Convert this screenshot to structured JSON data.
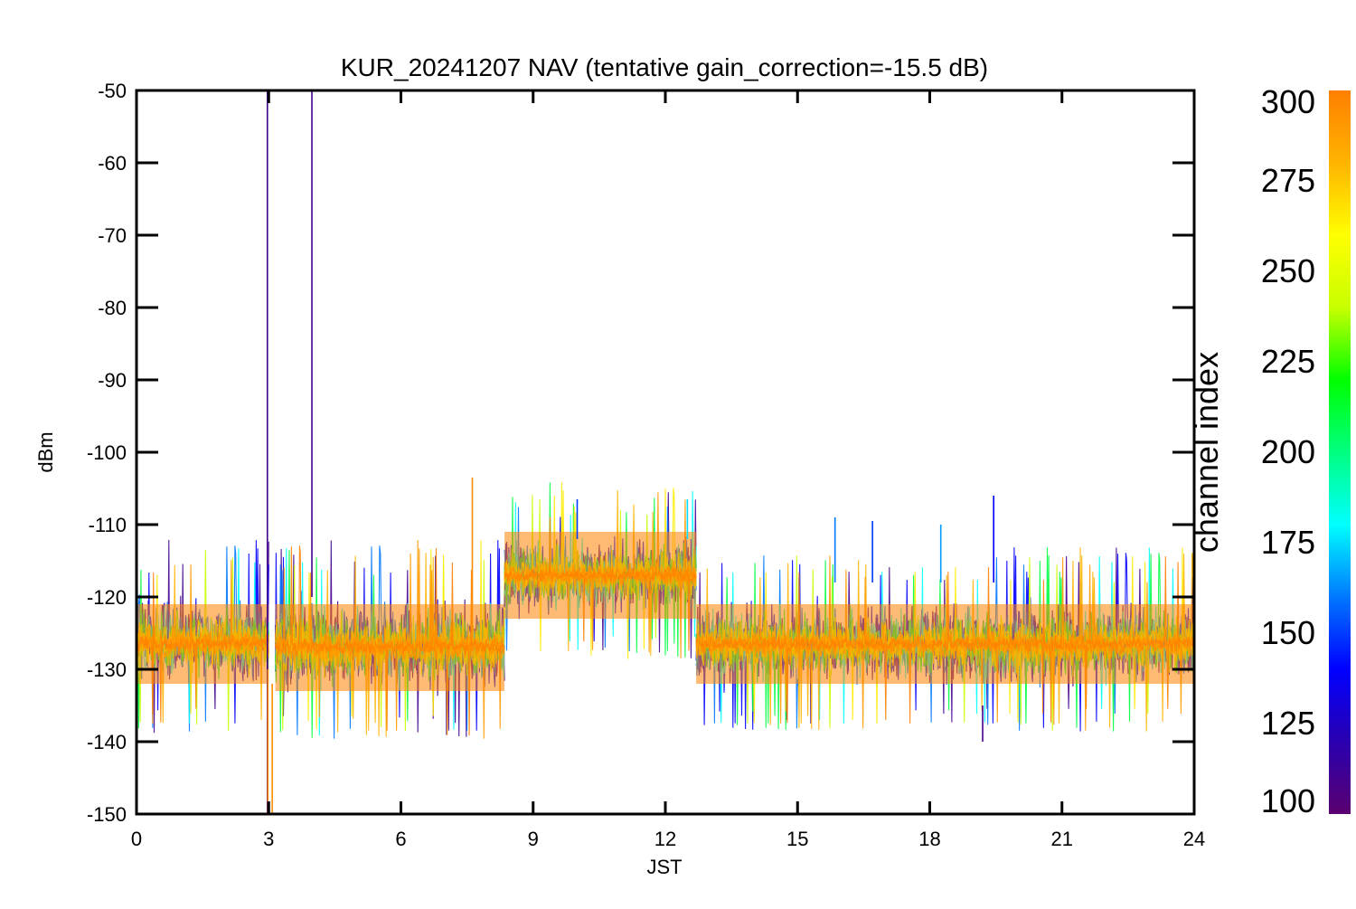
{
  "chart_data": {
    "type": "line",
    "title": "KUR_20241207 NAV (tentative gain_correction=-15.5 dB)",
    "xlabel": "JST",
    "ylabel": "dBm",
    "xlim": [
      0,
      24
    ],
    "ylim": [
      -150,
      -50
    ],
    "x_ticks": [
      0,
      3,
      6,
      9,
      12,
      15,
      18,
      21,
      24
    ],
    "x_tick_labels": [
      "0",
      "3",
      "6",
      "9",
      "12",
      "15",
      "18",
      "21",
      "24"
    ],
    "y_ticks": [
      -50,
      -60,
      -70,
      -80,
      -90,
      -100,
      -110,
      -120,
      -130,
      -140,
      -150
    ],
    "y_tick_labels": [
      "-50",
      "-60",
      "-70",
      "-80",
      "-90",
      "-100",
      "-110",
      "-120",
      "-130",
      "-140",
      "-150"
    ],
    "grid": false,
    "colorbar": {
      "label": "channel index",
      "range": [
        100,
        300
      ],
      "ticks": [
        100,
        125,
        150,
        175,
        200,
        225,
        250,
        275,
        300
      ],
      "tick_labels": [
        "100",
        "125",
        "150",
        "175",
        "200",
        "225",
        "250",
        "275",
        "300"
      ],
      "colors": [
        "#5a0070",
        "#2a00b0",
        "#0000ff",
        "#0078ff",
        "#00ffff",
        "#00ff80",
        "#00ff00",
        "#c8ff00",
        "#ffff00",
        "#ffb400",
        "#ff7f00"
      ]
    },
    "segments": [
      {
        "x_start": 0.0,
        "x_end": 3.0,
        "band_low": -135,
        "band_high": -117,
        "core_low": -132,
        "core_high": -121,
        "outlier_low": -139
      },
      {
        "x_start": 3.15,
        "x_end": 8.35,
        "band_low": -136,
        "band_high": -117,
        "core_low": -133,
        "core_high": -121,
        "outlier_low": -140
      },
      {
        "x_start": 8.35,
        "x_end": 12.7,
        "band_low": -125,
        "band_high": -109,
        "core_low": -123,
        "core_high": -111,
        "outlier_low": -130
      },
      {
        "x_start": 12.7,
        "x_end": 24.0,
        "band_low": -135,
        "band_high": -118,
        "core_low": -132,
        "core_high": -121,
        "outlier_low": -140
      }
    ],
    "spikes": [
      {
        "x": 2.97,
        "y_from": -150,
        "y_to": -50,
        "channel": 110
      },
      {
        "x": 3.98,
        "y_from": -120,
        "y_to": -50,
        "channel": 110
      },
      {
        "x": 2.98,
        "y_from": -150,
        "y_to": -130,
        "channel": 295
      },
      {
        "x": 3.08,
        "y_from": -150,
        "y_to": -132,
        "channel": 295
      },
      {
        "x": 7.62,
        "y_from": -125,
        "y_to": -103.5,
        "channel": 295
      },
      {
        "x": 10.0,
        "y_from": -112,
        "y_to": -106.5,
        "channel": 150
      },
      {
        "x": 12.5,
        "y_from": -112,
        "y_to": -106.5,
        "channel": 175
      },
      {
        "x": 15.85,
        "y_from": -118,
        "y_to": -109,
        "channel": 160
      },
      {
        "x": 19.45,
        "y_from": -118,
        "y_to": -106,
        "channel": 140
      },
      {
        "x": 19.2,
        "y_from": -135,
        "y_to": -140,
        "channel": 110
      },
      {
        "x": 18.25,
        "y_from": -118,
        "y_to": -110,
        "channel": 165
      },
      {
        "x": 16.7,
        "y_from": -118,
        "y_to": -109.5,
        "channel": 150
      }
    ]
  }
}
